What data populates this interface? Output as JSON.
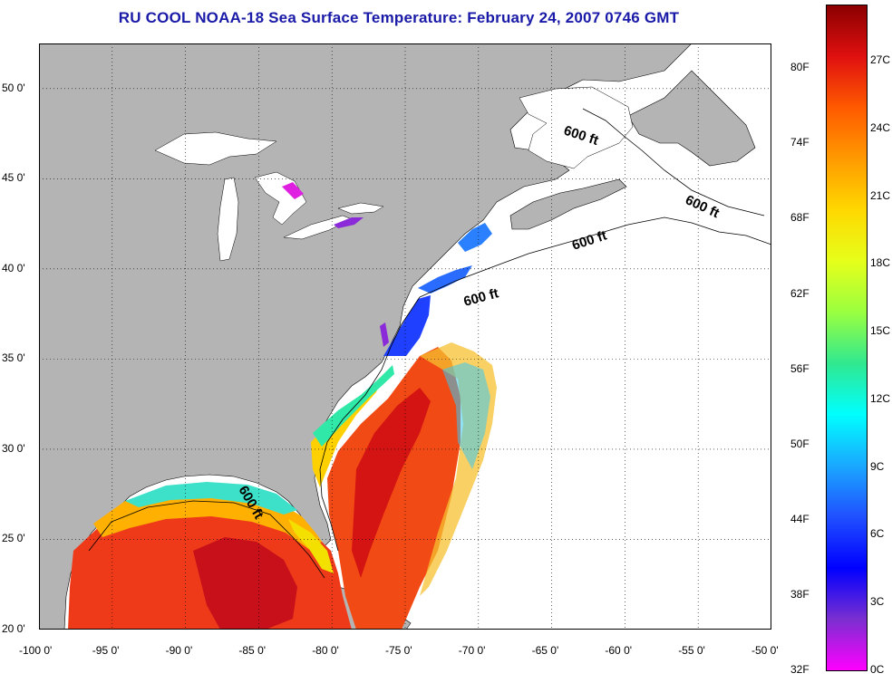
{
  "title": "RU COOL  NOAA-18  Sea Surface Temperature:  February 24, 2007 0746 GMT",
  "map": {
    "lon_range": [
      -100,
      -50
    ],
    "lat_range": [
      20,
      52.5
    ],
    "lon_ticks": [
      "-100 0'",
      "-95 0'",
      "-90 0'",
      "-85 0'",
      "-80 0'",
      "-75 0'",
      "-70 0'",
      "-65 0'",
      "-60 0'",
      "-55 0'",
      "-50 0'"
    ],
    "lat_ticks": [
      "50 0'",
      "45 0'",
      "40 0'",
      "35 0'",
      "30 0'",
      "25 0'",
      "20 0'"
    ],
    "grid": "dotted",
    "contour_label": "600 ft",
    "land_color": "#b4b4b4",
    "no_data_color": "#ffffff"
  },
  "colorbar": {
    "fahrenheit_labels": [
      "80F",
      "74F",
      "68F",
      "62F",
      "56F",
      "50F",
      "44F",
      "38F",
      "32F"
    ],
    "celsius_labels": [
      "27C",
      "24C",
      "21C",
      "18C",
      "15C",
      "12C",
      "9C",
      "6C",
      "3C",
      "0C"
    ],
    "gradient_colors": [
      "#8b0000",
      "#e01010",
      "#ff5a00",
      "#ff9a00",
      "#ffd800",
      "#e6ff1a",
      "#9aff40",
      "#30e890",
      "#00ffff",
      "#1aa8ff",
      "#2050ff",
      "#0000ff",
      "#7a2fd0",
      "#ff00ff"
    ]
  }
}
